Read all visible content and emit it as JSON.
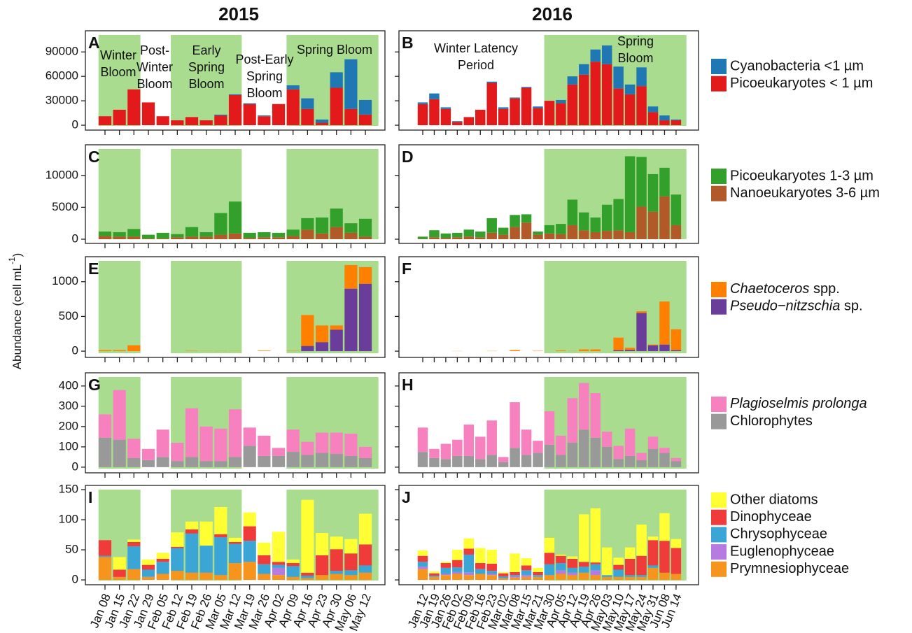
{
  "column_titles": [
    "2015",
    "2016"
  ],
  "y_label": {
    "text": "Abundance (cell mL",
    "superscript": "-1",
    "close": ")"
  },
  "x_categories": [
    [
      "Jan 08",
      "Jan 15",
      "Jan 22",
      "Jan 29",
      "Feb 05",
      "Feb 12",
      "Feb 19",
      "Feb 26",
      "Mar 05",
      "Mar 12",
      "Mar 19",
      "Mar 26",
      "Apr 02",
      "Apr 09",
      "Apr 16",
      "Apr 23",
      "Apr 30",
      "May 06",
      "May 12"
    ],
    [
      "Jan 12",
      "Jan 19",
      "Jan 26",
      "Feb 02",
      "Feb 09",
      "Feb 16",
      "Feb 23",
      "Mar 02",
      "Mar 08",
      "Mar 15",
      "Mar 21",
      "Mar 30",
      "Apr 05",
      "Apr 12",
      "Apr 19",
      "Apr 26",
      "May 03",
      "May 10",
      "May 17",
      "May 24",
      "May 31",
      "Jun 08",
      "Jun 14"
    ]
  ],
  "chart_data": [
    {
      "type": "bar",
      "stacked": true,
      "ylim": [
        -6000,
        116000
      ],
      "yticks": [
        0,
        30000,
        60000,
        90000
      ],
      "series": [
        {
          "name": "Cyanobacteria <1 µm",
          "color": "#1f78b4"
        },
        {
          "name": "Picoeukaryotes < 1 µm",
          "color": "#e31a1c"
        }
      ],
      "panels": [
        {
          "label": "A",
          "shaded": [
            [
              "Jan 08",
              "Jan 22"
            ],
            [
              "Feb 12",
              "Mar 12"
            ],
            [
              "Apr 09",
              "May 12"
            ]
          ],
          "annotations": [
            [
              "Winter",
              "Bloom"
            ],
            [
              "Post-",
              "Winter",
              "Bloom"
            ],
            [
              "Early",
              "Spring",
              "Bloom"
            ],
            [
              "Post-Early",
              "Spring",
              "Bloom"
            ],
            [
              "Spring Bloom"
            ]
          ],
          "values": [
            [
              0,
              0,
              0,
              0,
              0,
              0,
              0,
              0,
              1000,
              1000,
              1000,
              1000,
              0,
              5000,
              13000,
              4000,
              19000,
              61000,
              18000
            ],
            [
              11000,
              19000,
              44000,
              28000,
              11000,
              6000,
              10000,
              6000,
              12000,
              37000,
              26000,
              11000,
              26000,
              44000,
              20000,
              3000,
              46000,
              20000,
              13000
            ]
          ]
        },
        {
          "label": "B",
          "shaded": [
            [
              "Mar 30",
              "Jun 14"
            ]
          ],
          "annotations": [
            [
              "Winter Latency",
              "Period"
            ],
            [
              "Spring",
              "Bloom"
            ]
          ],
          "values": [
            [
              2000,
              7000,
              2000,
              1000,
              0,
              0,
              1500,
              2000,
              1000,
              1000,
              2000,
              0,
              4000,
              10000,
              13000,
              15000,
              23000,
              27000,
              12000,
              23000,
              7000,
              6000,
              1000
            ],
            [
              26000,
              32000,
              20000,
              4000,
              10000,
              19000,
              52000,
              20000,
              33000,
              46000,
              21000,
              30000,
              27000,
              50000,
              62000,
              78000,
              75000,
              45000,
              38000,
              48000,
              16000,
              6000,
              6000
            ]
          ]
        }
      ]
    },
    {
      "type": "bar",
      "stacked": true,
      "ylim": [
        -660,
        14800
      ],
      "yticks": [
        0,
        5000,
        10000
      ],
      "series": [
        {
          "name": "Picoeukaryotes 1-3 µm",
          "color": "#33a02c"
        },
        {
          "name": "Nanoeukaryotes 3-6 µm",
          "color": "#b15928"
        }
      ],
      "panels": [
        {
          "label": "C",
          "shaded": [
            [
              "Jan 08",
              "Jan 22"
            ],
            [
              "Feb 12",
              "Mar 12"
            ],
            [
              "Apr 09",
              "May 12"
            ]
          ],
          "values": [
            [
              700,
              700,
              1200,
              600,
              900,
              500,
              1500,
              700,
              3400,
              5000,
              800,
              800,
              700,
              1000,
              1800,
              2500,
              2900,
              1500,
              2800
            ],
            [
              500,
              400,
              400,
              100,
              100,
              300,
              400,
              400,
              700,
              900,
              200,
              300,
              300,
              500,
              1500,
              900,
              1900,
              1000,
              400
            ]
          ]
        },
        {
          "label": "D",
          "shaded": [
            [
              "Mar 30",
              "Jun 14"
            ]
          ],
          "values": [
            [
              350,
              1100,
              700,
              700,
              1100,
              900,
              2300,
              1100,
              1900,
              1300,
              500,
              1300,
              1600,
              4000,
              2800,
              2300,
              4100,
              4900,
              11900,
              7800,
              5900,
              4500,
              4800
            ],
            [
              50,
              300,
              200,
              300,
              400,
              300,
              1000,
              700,
              1900,
              2600,
              700,
              900,
              800,
              2200,
              1400,
              1100,
              1300,
              1400,
              1100,
              5100,
              4300,
              6700,
              2200
            ]
          ]
        }
      ]
    },
    {
      "type": "bar",
      "stacked": true,
      "ylim": [
        -90,
        1360
      ],
      "yticks": [
        0,
        500,
        1000
      ],
      "series": [
        {
          "name": "Chaetoceros spp.",
          "italic": "Chaetoceros",
          "color": "#ff7f00"
        },
        {
          "name": "Pseudo−nitzschia sp.",
          "italic": "Pseudo−nitzschia",
          "color": "#6a3d9a"
        }
      ],
      "panels": [
        {
          "label": "E",
          "shaded": [
            [
              "Jan 08",
              "Jan 22"
            ],
            [
              "Feb 12",
              "Mar 12"
            ],
            [
              "Apr 09",
              "May 12"
            ]
          ],
          "values": [
            [
              15,
              15,
              85,
              0,
              0,
              0,
              5,
              3,
              3,
              3,
              0,
              8,
              0,
              5,
              445,
              240,
              60,
              340,
              240
            ],
            [
              0,
              0,
              0,
              0,
              0,
              0,
              0,
              0,
              0,
              0,
              0,
              0,
              0,
              0,
              75,
              130,
              310,
              900,
              970
            ]
          ]
        },
        {
          "label": "F",
          "shaded": [
            [
              "Mar 30",
              "Jun 14"
            ]
          ],
          "values": [
            [
              0,
              0,
              0,
              2,
              0,
              0,
              3,
              0,
              15,
              0,
              5,
              0,
              10,
              3,
              25,
              25,
              0,
              180,
              30,
              25,
              10,
              620,
              300
            ],
            [
              0,
              0,
              0,
              0,
              0,
              0,
              0,
              0,
              0,
              0,
              0,
              0,
              0,
              0,
              0,
              0,
              0,
              15,
              20,
              550,
              85,
              95,
              15
            ]
          ]
        }
      ]
    },
    {
      "type": "bar",
      "stacked": true,
      "ylim": [
        -28,
        465
      ],
      "yticks": [
        0,
        100,
        200,
        300,
        400
      ],
      "series": [
        {
          "name": "Plagioselmis prolonga",
          "italic": "Plagioselmis prolonga",
          "color": "#f781bf"
        },
        {
          "name": "Chlorophytes",
          "color": "#999999"
        }
      ],
      "panels": [
        {
          "label": "G",
          "shaded": [
            [
              "Jan 08",
              "Jan 22"
            ],
            [
              "Feb 12",
              "Mar 12"
            ],
            [
              "Apr 09",
              "May 12"
            ]
          ],
          "values": [
            [
              115,
              245,
              95,
              55,
              135,
              90,
              240,
              170,
              160,
              235,
              90,
              100,
              40,
              110,
              65,
              100,
              105,
              110,
              55
            ],
            [
              145,
              135,
              45,
              35,
              50,
              30,
              50,
              30,
              30,
              50,
              105,
              55,
              55,
              75,
              60,
              70,
              65,
              55,
              45
            ]
          ]
        },
        {
          "label": "H",
          "shaded": [
            [
              "Mar 30",
              "Jun 14"
            ]
          ],
          "values": [
            [
              120,
              45,
              75,
              80,
              155,
              110,
              170,
              25,
              225,
              125,
              60,
              165,
              95,
              220,
              230,
              220,
              75,
              65,
              135,
              35,
              60,
              25,
              15
            ],
            [
              75,
              45,
              40,
              55,
              55,
              40,
              60,
              25,
              95,
              60,
              70,
              110,
              60,
              120,
              185,
              145,
              100,
              40,
              55,
              35,
              90,
              70,
              30
            ]
          ]
        }
      ]
    },
    {
      "type": "bar",
      "stacked": true,
      "ylim": [
        -8,
        157
      ],
      "yticks": [
        0,
        50,
        100,
        150
      ],
      "series": [
        {
          "name": "Other diatoms",
          "color": "#ffff33"
        },
        {
          "name": "Dinophyceae",
          "color": "#f03b3b"
        },
        {
          "name": "Chrysophyceae",
          "color": "#3ba5d6"
        },
        {
          "name": "Euglenophyceae",
          "color": "#b57be0"
        },
        {
          "name": "Prymnesiophyceae",
          "color": "#f7941d"
        }
      ],
      "panels": [
        {
          "label": "I",
          "shaded": [
            [
              "Jan 08",
              "Jan 22"
            ],
            [
              "Feb 12",
              "Mar 12"
            ],
            [
              "Apr 09",
              "May 12"
            ]
          ],
          "values": [
            [
              0,
              21,
              4,
              9,
              10,
              24,
              13,
              40,
              45,
              7,
              23,
              21,
              50,
              6,
              121,
              37,
              21,
              24,
              51
            ],
            [
              26,
              12,
              7,
              8,
              5,
              2,
              7,
              0,
              5,
              3,
              24,
              15,
              5,
              5,
              5,
              33,
              36,
              28,
              35
            ],
            [
              2,
              0,
              38,
              12,
              20,
              38,
              65,
              45,
              63,
              32,
              35,
              16,
              5,
              18,
              4,
              0,
              5,
              8,
              12
            ],
            [
              0,
              0,
              0,
              0,
              0,
              0,
              0,
              0,
              0,
              0,
              0,
              0,
              12,
              0,
              0,
              0,
              0,
              0,
              0
            ],
            [
              38,
              5,
              18,
              5,
              10,
              15,
              12,
              12,
              8,
              28,
              30,
              10,
              8,
              5,
              3,
              8,
              10,
              8,
              12
            ]
          ]
        },
        {
          "label": "J",
          "shaded": [
            [
              "Mar 30",
              "Jun 14"
            ]
          ],
          "values": [
            [
              9,
              3,
              2,
              17,
              17,
              25,
              23,
              2,
              31,
              12,
              7,
              25,
              2,
              4,
              79,
              90,
              46,
              12,
              19,
              52,
              6,
              46,
              15
            ],
            [
              10,
              4,
              8,
              12,
              10,
              10,
              12,
              5,
              5,
              8,
              5,
              19,
              12,
              15,
              8,
              3,
              0,
              8,
              27,
              32,
              42,
              53,
              43
            ],
            [
              8,
              2,
              10,
              8,
              30,
              8,
              5,
              3,
              2,
              8,
              3,
              18,
              12,
              8,
              10,
              10,
              3,
              12,
              3,
              3,
              4,
              0,
              0
            ],
            [
              4,
              0,
              2,
              3,
              4,
              0,
              2,
              0,
              2,
              3,
              0,
              0,
              6,
              4,
              0,
              8,
              0,
              0,
              0,
              0,
              0,
              0,
              0
            ],
            [
              18,
              5,
              8,
              10,
              8,
              10,
              8,
              3,
              4,
              5,
              5,
              8,
              10,
              8,
              12,
              8,
              5,
              5,
              5,
              5,
              20,
              12,
              10
            ]
          ]
        }
      ]
    }
  ]
}
